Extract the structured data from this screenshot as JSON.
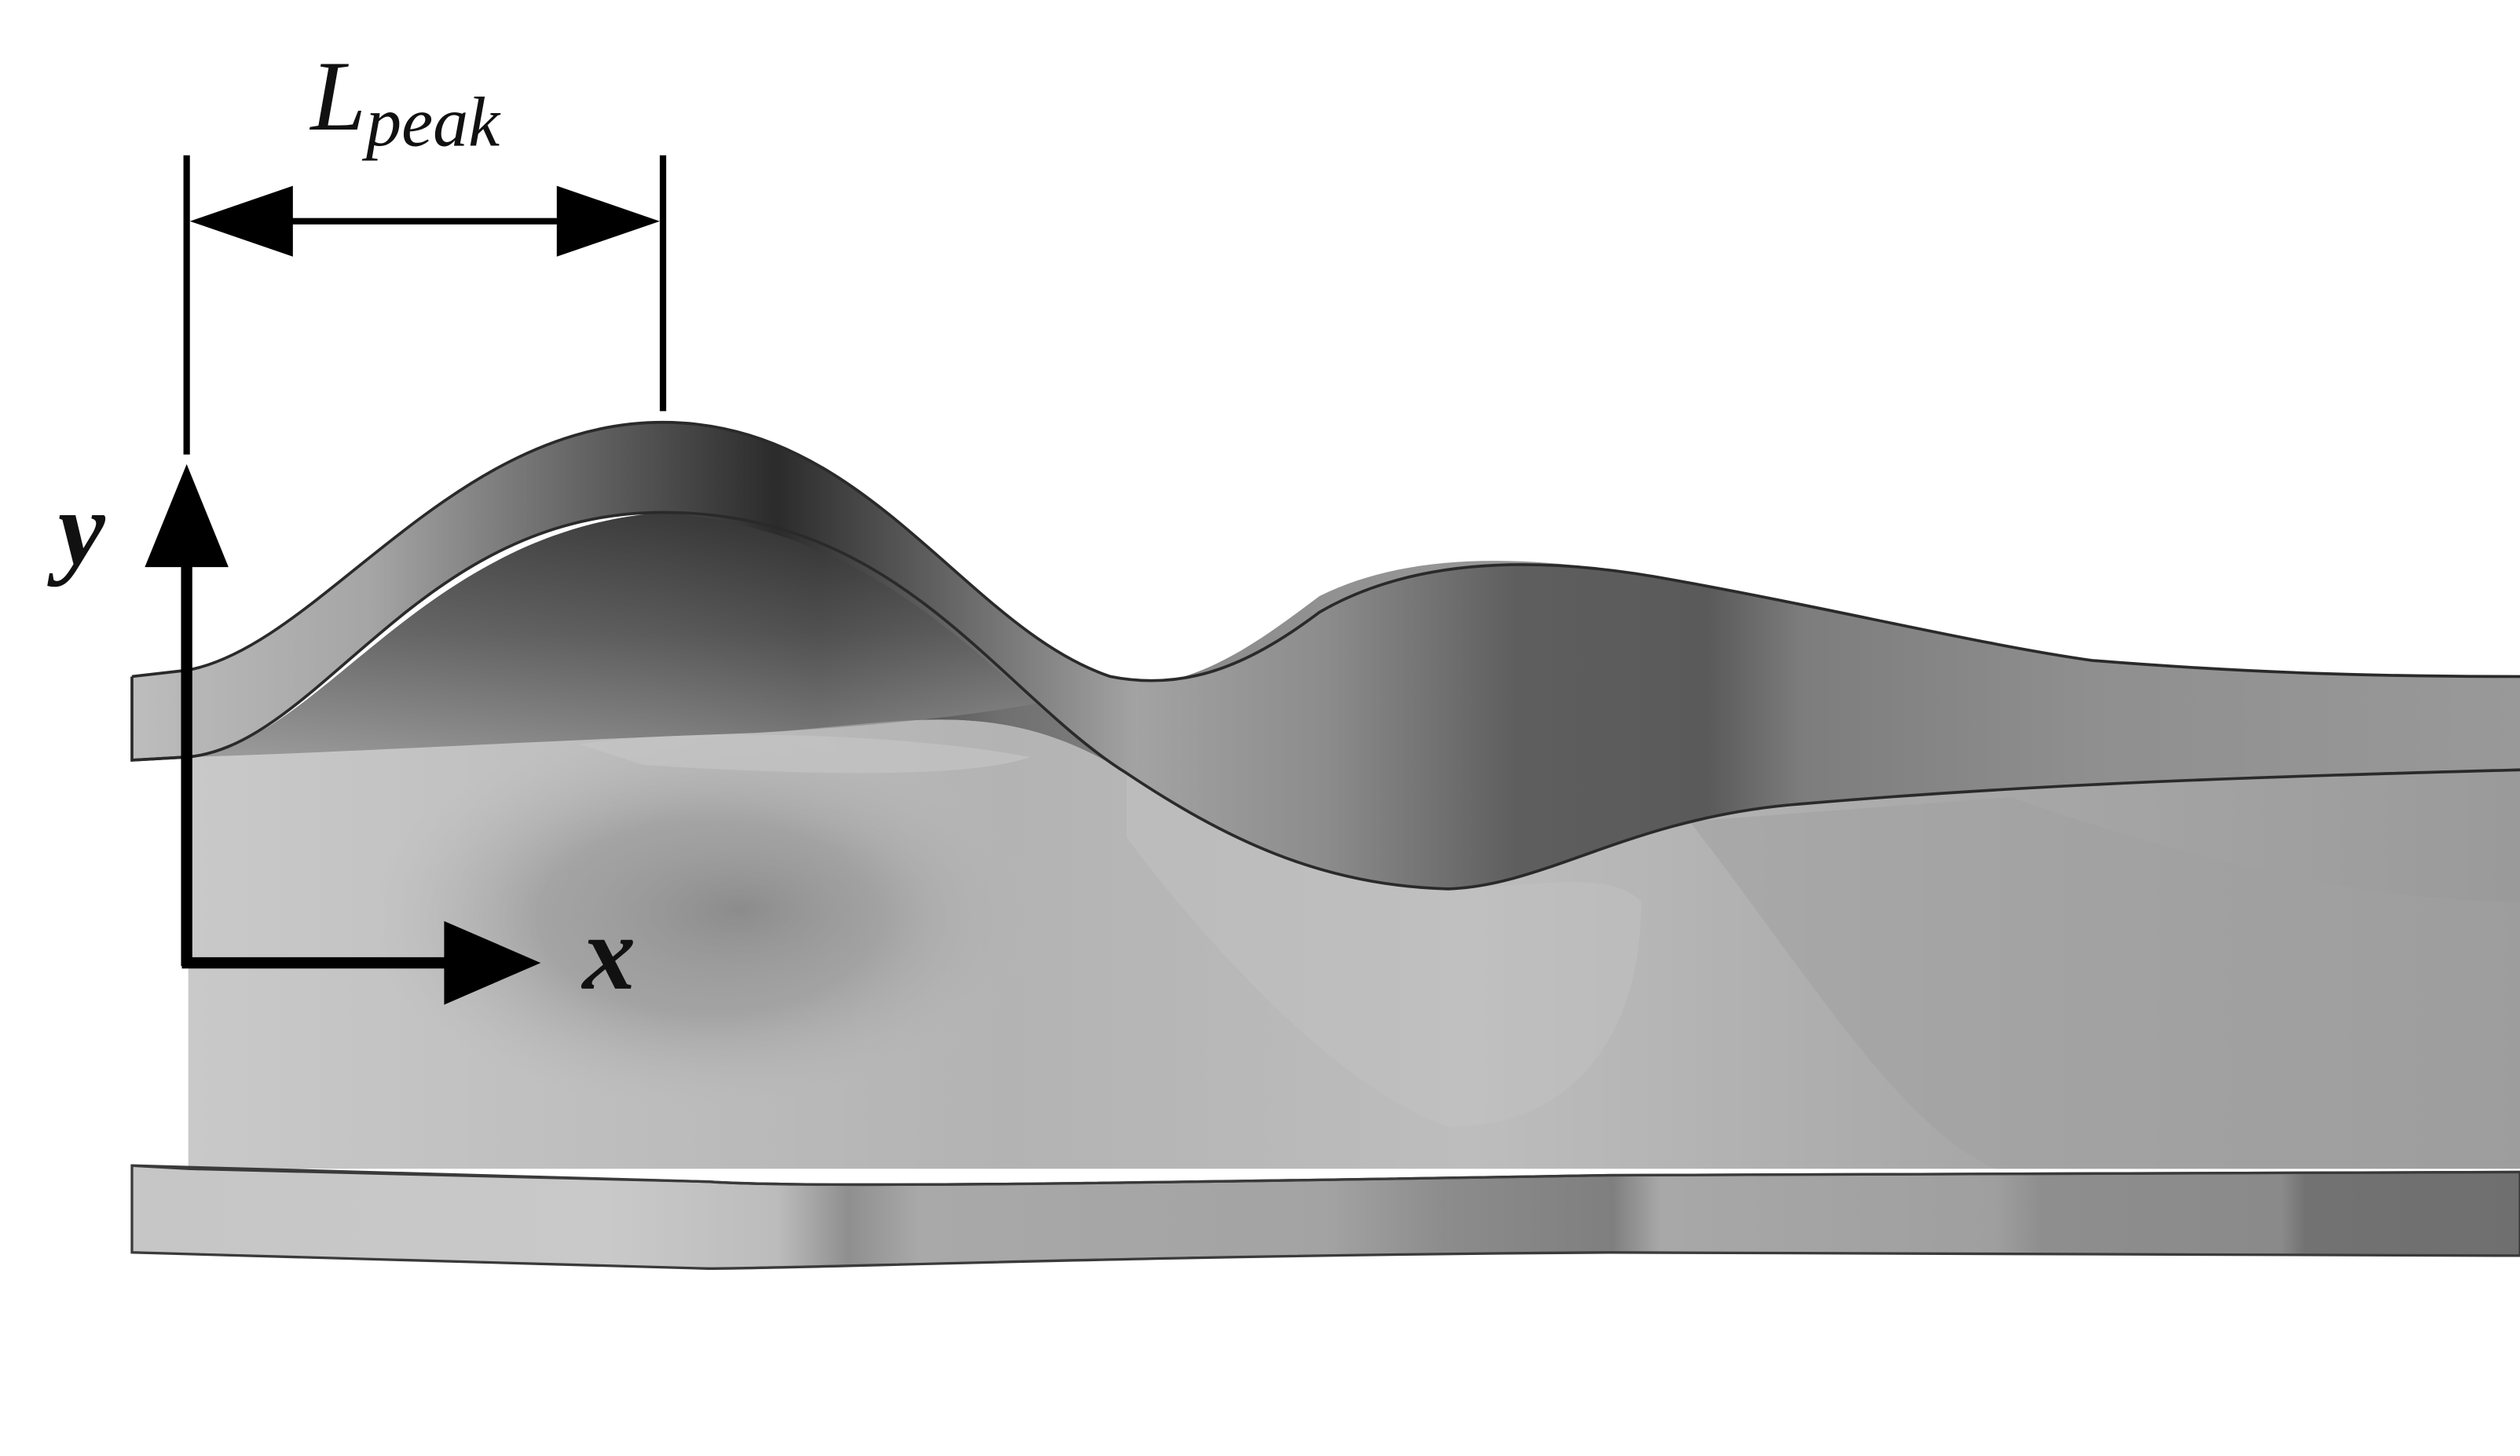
{
  "labels": {
    "dimension": {
      "main": "L",
      "subscript": "peak"
    },
    "y_axis": "y",
    "x_axis": "x"
  },
  "colors": {
    "outline": "#2a2a2a",
    "ink": "#000000",
    "background": "#ffffff"
  }
}
